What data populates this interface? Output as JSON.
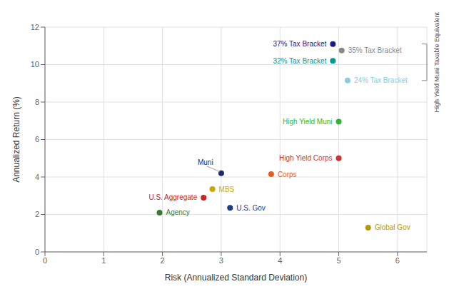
{
  "chart_data": {
    "type": "scatter",
    "xlabel": "Risk (Annualized Standard Deviation)",
    "ylabel": "Annualized Return (%)",
    "xlim": [
      0,
      6.5
    ],
    "ylim": [
      0,
      12
    ],
    "xticks": [
      0,
      1,
      2,
      3,
      4,
      5,
      6
    ],
    "yticks": [
      0,
      2,
      4,
      6,
      8,
      10,
      12
    ],
    "grid": true,
    "labels": [
      "Agency",
      "U.S. Aggregate",
      "MBS",
      "Muni",
      "U.S. Gov",
      "Corps",
      "High Yield Muni",
      "High Yield Corps",
      "Global Gov",
      "37% Tax Bracket",
      "35% Tax Bracket",
      "32% Tax Bracket",
      "24% Tax Bracket"
    ],
    "x": [
      1.95,
      2.7,
      2.85,
      3.0,
      3.15,
      3.85,
      5.0,
      5.0,
      5.5,
      4.9,
      5.05,
      4.9,
      5.15
    ],
    "y": [
      2.1,
      2.9,
      3.35,
      4.2,
      2.35,
      4.15,
      6.95,
      5.0,
      1.3,
      11.1,
      10.75,
      10.2,
      9.15
    ],
    "colors": [
      "#3a7a3a",
      "#cc2222",
      "#c8a800",
      "#1a2a6e",
      "#1a3a8a",
      "#e06020",
      "#2db52d",
      "#cc3333",
      "#b8960c",
      "#1a1a8a",
      "#888888",
      "#009999",
      "#88ccdd"
    ],
    "annotations": [
      {
        "text": "High Yield Muni Taxable Equivalent",
        "y": [
          9.15,
          11.1
        ]
      }
    ]
  }
}
